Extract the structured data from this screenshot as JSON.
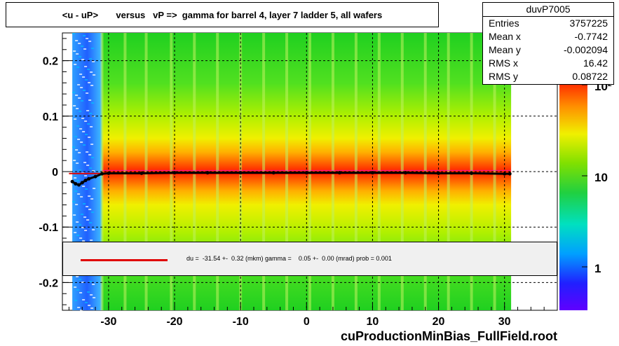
{
  "header": {
    "title": "<u - uP>       versus   vP =>  gamma for barrel 4, layer 7 ladder 5, all wafers"
  },
  "stats": {
    "name": "duvP7005",
    "rows": [
      {
        "label": "Entries",
        "value": "3757225"
      },
      {
        "label": "Mean x",
        "value": "-0.7742"
      },
      {
        "label": "Mean y",
        "value": "-0.002094"
      },
      {
        "label": "RMS x",
        "value": "16.42"
      },
      {
        "label": "RMS y",
        "value": "0.08722"
      }
    ]
  },
  "fit": {
    "text": "du =  -31.54 +-  0.32 (mkm) gamma =    0.05 +-  0.00 (mrad) prob = 0.001"
  },
  "footer": {
    "filename": "cuProductionMinBias_FullField.root"
  },
  "chart_data": {
    "type": "heatmap",
    "title": "<u - uP>       versus   vP =>  gamma for barrel 4, layer 7 ladder 5, all wafers",
    "xlabel": "",
    "ylabel": "",
    "xlim": [
      -37,
      38
    ],
    "ylim": [
      -0.25,
      0.25
    ],
    "x_ticks": [
      -30,
      -20,
      -10,
      0,
      10,
      20,
      30
    ],
    "x_tick_labels": [
      "-30",
      "-20",
      "-10",
      "0",
      "10",
      "20",
      "30"
    ],
    "y_ticks": [
      0.2,
      0.1,
      0,
      -0.1,
      -0.2
    ],
    "y_tick_labels": [
      "0.2",
      "0.1",
      "0",
      "-0.1",
      "-0.2"
    ],
    "z_scale": "log",
    "z_tick_labels": [
      "10²",
      "10",
      "1"
    ],
    "colors": {
      "low": "#2020ff",
      "mid": "#20e020",
      "high_yellow": "#f0f000",
      "high_orange": "#ff8000",
      "max": "#ff2000",
      "profile": "#000000",
      "fit": "#e00000",
      "band_ref": "#ff00ff"
    },
    "heatmap_x_range": [
      -35.5,
      31
    ],
    "blue_column_x": [
      -35.5,
      -31
    ],
    "wafer_gaps_x": [
      -31,
      -27.5,
      -24.3,
      -20.5,
      -17,
      -13.5,
      -10,
      -6.5,
      -3,
      0.5,
      4,
      7.5,
      11,
      14.5,
      18,
      21.5,
      25,
      28.5
    ],
    "profile": {
      "x": [
        -35.5,
        -35,
        -34.5,
        -34,
        -33.5,
        -33,
        -32,
        -31,
        -30,
        -25,
        -20,
        -15,
        -10,
        -5,
        0,
        5,
        10,
        15,
        20,
        25,
        30,
        30.8
      ],
      "y": [
        -0.018,
        -0.022,
        -0.024,
        -0.02,
        -0.016,
        -0.013,
        -0.009,
        -0.004,
        -0.003,
        -0.003,
        -0.002,
        -0.002,
        -0.002,
        -0.002,
        -0.002,
        -0.002,
        -0.002,
        -0.002,
        -0.003,
        -0.003,
        -0.004,
        -0.004
      ]
    },
    "fit_line": {
      "x": [
        -36,
        31
      ],
      "y": [
        -0.0035,
        -0.0035
      ]
    }
  }
}
